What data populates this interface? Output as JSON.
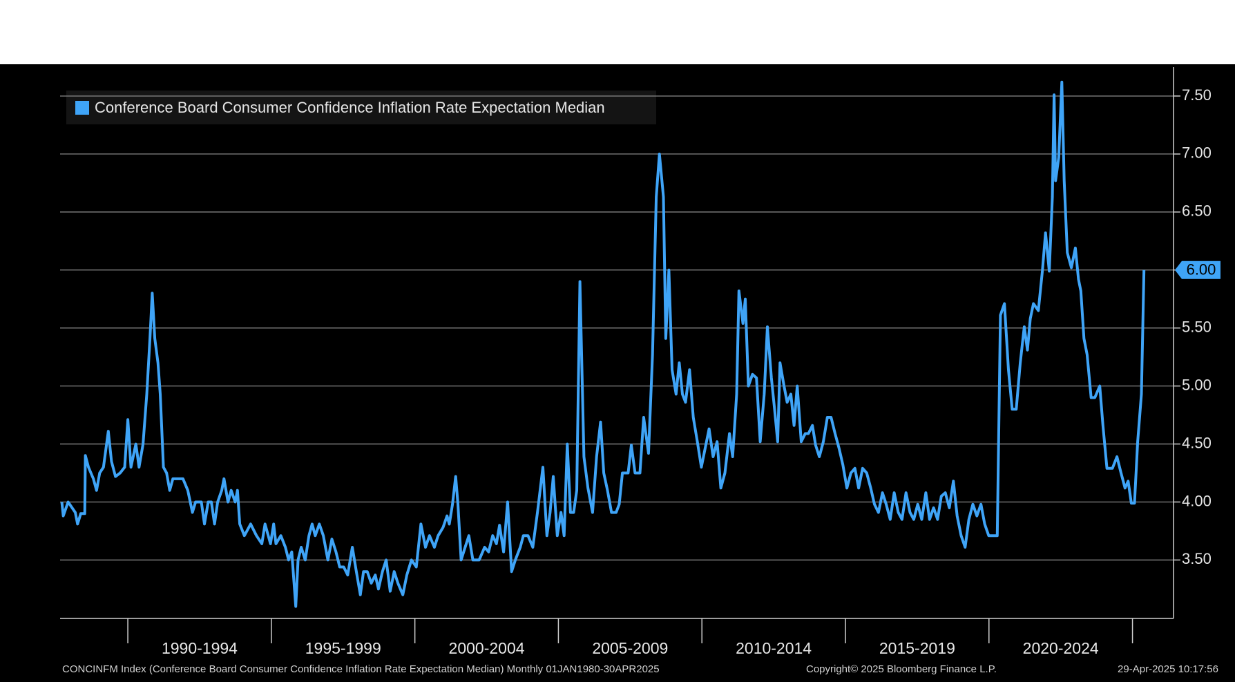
{
  "chart_data": {
    "type": "line",
    "legend": "top-left",
    "grid": true,
    "source": "CONCINFM Index (Conference Board Consumer Confidence Inflation Rate Expectation Median)  Monthly 01JAN1980-30APR2025",
    "copyright": "Copyright© 2025 Bloomberg Finance L.P.",
    "timestamp": "29-Apr-2025 10:17:56",
    "last_value_label": "6.00",
    "xlim": [
      1987.64,
      2026.43
    ],
    "ylim": [
      3.02,
      7.75
    ],
    "xticks": [
      1990,
      1995,
      2000,
      2005,
      2010,
      2015,
      2020,
      2025
    ],
    "xtick_labels": [
      {
        "value": 1992.5,
        "label": "1990-1994"
      },
      {
        "value": 1997.5,
        "label": "1995-1999"
      },
      {
        "value": 2002.5,
        "label": "2000-2004"
      },
      {
        "value": 2007.5,
        "label": "2005-2009"
      },
      {
        "value": 2012.5,
        "label": "2010-2014"
      },
      {
        "value": 2017.5,
        "label": "2015-2019"
      },
      {
        "value": 2022.5,
        "label": "2020-2024"
      }
    ],
    "yticks": [
      {
        "value": 3.5,
        "label": "3.50"
      },
      {
        "value": 4.0,
        "label": "4.00"
      },
      {
        "value": 4.5,
        "label": "4.50"
      },
      {
        "value": 5.0,
        "label": "5.00"
      },
      {
        "value": 5.5,
        "label": "5.50"
      },
      {
        "value": 6.0,
        "label": "6.00"
      },
      {
        "value": 6.5,
        "label": "6.50"
      },
      {
        "value": 7.0,
        "label": "7.00"
      },
      {
        "value": 7.5,
        "label": "7.50"
      }
    ],
    "x": [
      1987.7,
      1987.75,
      1987.92,
      1988.17,
      1988.25,
      1988.36,
      1988.5,
      1988.52,
      1988.63,
      1988.8,
      1988.91,
      1989.02,
      1989.15,
      1989.32,
      1989.43,
      1989.57,
      1989.73,
      1989.89,
      1990.0,
      1990.11,
      1990.28,
      1990.39,
      1990.53,
      1990.66,
      1990.77,
      1990.85,
      1990.94,
      1991.05,
      1991.13,
      1991.24,
      1991.35,
      1991.46,
      1991.57,
      1991.73,
      1991.92,
      1992.09,
      1992.25,
      1992.36,
      1992.56,
      1992.67,
      1992.8,
      1992.91,
      1993.02,
      1993.13,
      1993.27,
      1993.35,
      1993.49,
      1993.6,
      1993.74,
      1993.82,
      1993.9,
      1994.06,
      1994.28,
      1994.48,
      1994.67,
      1994.78,
      1994.97,
      1995.08,
      1995.16,
      1995.33,
      1995.49,
      1995.6,
      1995.71,
      1995.85,
      1995.93,
      1996.04,
      1996.18,
      1996.31,
      1996.42,
      1996.53,
      1996.67,
      1996.81,
      1996.97,
      1997.11,
      1997.25,
      1997.38,
      1997.52,
      1997.66,
      1997.82,
      1997.96,
      1998.1,
      1998.21,
      1998.34,
      1998.48,
      1998.62,
      1998.73,
      1998.87,
      1999.0,
      1999.14,
      1999.28,
      1999.41,
      1999.58,
      1999.72,
      1999.88,
      2000.05,
      2000.21,
      2000.37,
      2000.51,
      2000.68,
      2000.81,
      2000.98,
      2001.12,
      2001.2,
      2001.31,
      2001.42,
      2001.5,
      2001.61,
      2001.75,
      2001.88,
      2002.02,
      2002.24,
      2002.43,
      2002.57,
      2002.71,
      2002.84,
      2002.95,
      2003.09,
      2003.23,
      2003.37,
      2003.5,
      2003.67,
      2003.78,
      2003.94,
      2004.11,
      2004.27,
      2004.46,
      2004.6,
      2004.71,
      2004.82,
      2004.96,
      2005.09,
      2005.2,
      2005.31,
      2005.42,
      2005.53,
      2005.64,
      2005.75,
      2005.89,
      2006.03,
      2006.19,
      2006.33,
      2006.47,
      2006.58,
      2006.71,
      2006.85,
      2007.01,
      2007.12,
      2007.23,
      2007.43,
      2007.54,
      2007.67,
      2007.84,
      2007.97,
      2008.14,
      2008.28,
      2008.41,
      2008.52,
      2008.66,
      2008.74,
      2008.85,
      2008.96,
      2009.1,
      2009.21,
      2009.32,
      2009.43,
      2009.57,
      2009.7,
      2009.84,
      2009.98,
      2010.11,
      2010.25,
      2010.39,
      2010.53,
      2010.66,
      2010.8,
      2010.96,
      2011.07,
      2011.21,
      2011.29,
      2011.43,
      2011.51,
      2011.62,
      2011.76,
      2011.9,
      2012.03,
      2012.17,
      2012.28,
      2012.42,
      2012.53,
      2012.64,
      2012.72,
      2012.86,
      2012.97,
      2013.1,
      2013.21,
      2013.32,
      2013.46,
      2013.6,
      2013.71,
      2013.85,
      2013.96,
      2014.09,
      2014.23,
      2014.37,
      2014.5,
      2014.64,
      2014.78,
      2014.91,
      2015.05,
      2015.19,
      2015.33,
      2015.46,
      2015.6,
      2015.74,
      2015.88,
      2016.01,
      2016.15,
      2016.29,
      2016.42,
      2016.56,
      2016.7,
      2016.84,
      2016.97,
      2017.11,
      2017.25,
      2017.38,
      2017.52,
      2017.66,
      2017.8,
      2017.93,
      2018.07,
      2018.21,
      2018.34,
      2018.48,
      2018.62,
      2018.76,
      2018.89,
      2019.03,
      2019.17,
      2019.3,
      2019.44,
      2019.58,
      2019.72,
      2019.85,
      2019.99,
      2020.13,
      2020.29,
      2020.4,
      2020.54,
      2020.68,
      2020.81,
      2020.95,
      2021.09,
      2021.23,
      2021.34,
      2021.44,
      2021.55,
      2021.72,
      2021.86,
      2021.97,
      2022.1,
      2022.21,
      2022.27,
      2022.32,
      2022.43,
      2022.54,
      2022.62,
      2022.73,
      2022.87,
      2023.01,
      2023.12,
      2023.2,
      2023.31,
      2023.42,
      2023.56,
      2023.69,
      2023.86,
      2023.97,
      2024.11,
      2024.3,
      2024.46,
      2024.6,
      2024.74,
      2024.85,
      2024.96,
      2025.07,
      2025.18,
      2025.31,
      2025.4
    ],
    "series": [
      {
        "name": "Conference Board Consumer Confidence Inflation Rate Expectation Median",
        "color": "#3fa4f7",
        "values": [
          4.0,
          3.88,
          4.0,
          3.91,
          3.81,
          3.9,
          3.9,
          4.4,
          4.3,
          4.2,
          4.1,
          4.25,
          4.3,
          4.61,
          4.35,
          4.22,
          4.25,
          4.3,
          4.71,
          4.3,
          4.5,
          4.3,
          4.5,
          4.93,
          5.41,
          5.8,
          5.41,
          5.2,
          4.93,
          4.3,
          4.25,
          4.1,
          4.2,
          4.2,
          4.2,
          4.1,
          3.91,
          4.0,
          4.0,
          3.81,
          4.0,
          4.0,
          3.81,
          4.0,
          4.1,
          4.2,
          4.0,
          4.1,
          4.0,
          4.1,
          3.81,
          3.71,
          3.81,
          3.71,
          3.64,
          3.81,
          3.64,
          3.81,
          3.64,
          3.71,
          3.61,
          3.5,
          3.57,
          3.1,
          3.5,
          3.61,
          3.5,
          3.71,
          3.81,
          3.71,
          3.81,
          3.71,
          3.5,
          3.68,
          3.57,
          3.44,
          3.44,
          3.37,
          3.61,
          3.4,
          3.2,
          3.4,
          3.4,
          3.3,
          3.37,
          3.25,
          3.4,
          3.5,
          3.23,
          3.4,
          3.3,
          3.2,
          3.37,
          3.5,
          3.44,
          3.81,
          3.61,
          3.71,
          3.61,
          3.71,
          3.78,
          3.88,
          3.81,
          3.98,
          4.22,
          3.98,
          3.5,
          3.61,
          3.71,
          3.5,
          3.5,
          3.61,
          3.57,
          3.71,
          3.64,
          3.8,
          3.57,
          4.0,
          3.4,
          3.5,
          3.61,
          3.71,
          3.71,
          3.61,
          3.91,
          4.3,
          3.71,
          3.91,
          4.22,
          3.71,
          3.91,
          3.71,
          4.5,
          3.91,
          3.91,
          4.1,
          5.9,
          4.39,
          4.12,
          3.91,
          4.39,
          4.69,
          4.25,
          4.1,
          3.91,
          3.91,
          3.98,
          4.25,
          4.25,
          4.49,
          4.25,
          4.25,
          4.73,
          4.42,
          5.27,
          6.63,
          7.0,
          6.63,
          5.41,
          6.0,
          5.14,
          4.93,
          5.2,
          4.93,
          4.86,
          5.14,
          4.73,
          4.52,
          4.3,
          4.46,
          4.63,
          4.39,
          4.52,
          4.12,
          4.25,
          4.59,
          4.39,
          4.93,
          5.82,
          5.54,
          5.75,
          5.0,
          5.1,
          5.07,
          4.52,
          4.93,
          5.51,
          5.07,
          4.8,
          4.52,
          5.2,
          5.0,
          4.86,
          4.93,
          4.66,
          5.0,
          4.52,
          4.59,
          4.59,
          4.66,
          4.49,
          4.39,
          4.52,
          4.73,
          4.73,
          4.59,
          4.46,
          4.32,
          4.12,
          4.25,
          4.29,
          4.12,
          4.29,
          4.25,
          4.12,
          3.98,
          3.91,
          4.08,
          3.98,
          3.85,
          4.08,
          3.91,
          3.85,
          4.08,
          3.91,
          3.85,
          3.98,
          3.85,
          4.08,
          3.85,
          3.95,
          3.85,
          4.05,
          4.08,
          3.95,
          4.18,
          3.88,
          3.71,
          3.61,
          3.85,
          3.98,
          3.88,
          3.98,
          3.81,
          3.71,
          3.71,
          3.71,
          5.61,
          5.71,
          5.14,
          4.8,
          4.8,
          5.2,
          5.51,
          5.31,
          5.58,
          5.71,
          5.65,
          5.99,
          6.32,
          5.99,
          6.63,
          7.51,
          6.77,
          6.97,
          7.62,
          6.77,
          6.15,
          6.02,
          6.19,
          5.92,
          5.82,
          5.41,
          5.27,
          4.9,
          4.9,
          5.0,
          4.66,
          4.29,
          4.29,
          4.39,
          4.25,
          4.12,
          4.18,
          3.99,
          3.99,
          4.52,
          4.93,
          6.0
        ]
      }
    ]
  }
}
